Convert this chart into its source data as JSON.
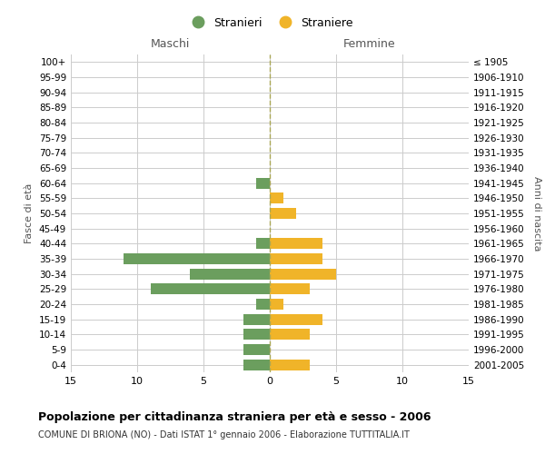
{
  "age_groups": [
    "100+",
    "95-99",
    "90-94",
    "85-89",
    "80-84",
    "75-79",
    "70-74",
    "65-69",
    "60-64",
    "55-59",
    "50-54",
    "45-49",
    "40-44",
    "35-39",
    "30-34",
    "25-29",
    "20-24",
    "15-19",
    "10-14",
    "5-9",
    "0-4"
  ],
  "birth_years": [
    "≤ 1905",
    "1906-1910",
    "1911-1915",
    "1916-1920",
    "1921-1925",
    "1926-1930",
    "1931-1935",
    "1936-1940",
    "1941-1945",
    "1946-1950",
    "1951-1955",
    "1956-1960",
    "1961-1965",
    "1966-1970",
    "1971-1975",
    "1976-1980",
    "1981-1985",
    "1986-1990",
    "1991-1995",
    "1996-2000",
    "2001-2005"
  ],
  "maschi": [
    0,
    0,
    0,
    0,
    0,
    0,
    0,
    0,
    1,
    0,
    0,
    0,
    1,
    11,
    6,
    9,
    1,
    2,
    2,
    2,
    2
  ],
  "femmine": [
    0,
    0,
    0,
    0,
    0,
    0,
    0,
    0,
    0,
    1,
    2,
    0,
    4,
    4,
    5,
    3,
    1,
    4,
    3,
    0,
    3
  ],
  "color_maschi": "#6b9e5e",
  "color_femmine": "#f0b429",
  "title": "Popolazione per cittadinanza straniera per età e sesso - 2006",
  "subtitle": "COMUNE DI BRIONA (NO) - Dati ISTAT 1° gennaio 2006 - Elaborazione TUTTITALIA.IT",
  "xlabel_left": "Maschi",
  "xlabel_right": "Femmine",
  "ylabel_left": "Fasce di età",
  "ylabel_right": "Anni di nascita",
  "legend_maschi": "Stranieri",
  "legend_femmine": "Straniere",
  "xlim": 15,
  "background_color": "#ffffff",
  "grid_color": "#cccccc"
}
